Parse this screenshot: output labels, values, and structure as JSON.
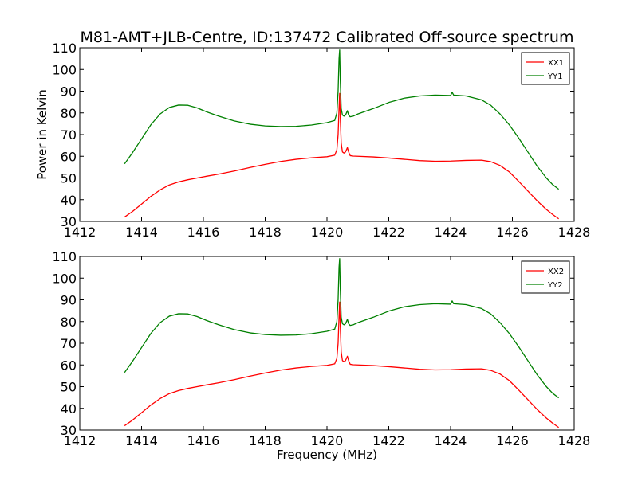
{
  "chart_data": {
    "title": "M81-AMT+JLB-Centre, ID:137472 Calibrated Off-source spectrum",
    "xlabel": "Frequency (MHz)",
    "ylabel": "Power in Kelvin",
    "colors": {
      "XX": "#ff0000",
      "YY": "#008000"
    },
    "panels": [
      {
        "type": "line",
        "xlim": [
          1412,
          1428
        ],
        "ylim": [
          30,
          110
        ],
        "xticks": [
          1412,
          1414,
          1416,
          1418,
          1420,
          1422,
          1424,
          1426,
          1428
        ],
        "yticks": [
          30,
          40,
          50,
          60,
          70,
          80,
          90,
          100,
          110
        ],
        "legend_position": "top-right",
        "series": [
          {
            "name": "XX1",
            "color": "#ff0000",
            "x": [
              1413.45,
              1413.7,
              1414.0,
              1414.3,
              1414.6,
              1414.9,
              1415.2,
              1415.5,
              1415.8,
              1416.1,
              1416.5,
              1417.0,
              1417.5,
              1418.0,
              1418.5,
              1419.0,
              1419.5,
              1420.0,
              1420.25,
              1420.32,
              1420.36,
              1420.39,
              1420.41,
              1420.43,
              1420.46,
              1420.5,
              1420.55,
              1420.6,
              1420.66,
              1420.7,
              1420.75,
              1420.85,
              1421.0,
              1421.5,
              1422.0,
              1422.5,
              1423.0,
              1423.5,
              1424.0,
              1424.5,
              1425.0,
              1425.3,
              1425.6,
              1425.9,
              1426.2,
              1426.5,
              1426.8,
              1427.1,
              1427.3,
              1427.5
            ],
            "y": [
              32,
              34.5,
              38,
              41.5,
              44.5,
              46.8,
              48.2,
              49.2,
              50.0,
              50.8,
              51.8,
              53.2,
              54.8,
              56.3,
              57.6,
              58.6,
              59.3,
              59.8,
              60.5,
              63,
              70,
              82,
              89,
              78,
              66,
              62,
              61.5,
              62,
              64,
              62,
              60.3,
              60.1,
              60.0,
              59.7,
              59.2,
              58.6,
              58.0,
              57.7,
              57.8,
              58.1,
              58.2,
              57.5,
              55.8,
              52.8,
              48.5,
              44.0,
              39.5,
              35.5,
              33.2,
              31.2
            ]
          },
          {
            "name": "YY1",
            "color": "#008000",
            "x": [
              1413.45,
              1413.7,
              1414.0,
              1414.3,
              1414.6,
              1414.9,
              1415.2,
              1415.5,
              1415.8,
              1416.1,
              1416.5,
              1417.0,
              1417.5,
              1418.0,
              1418.5,
              1419.0,
              1419.5,
              1420.0,
              1420.25,
              1420.32,
              1420.36,
              1420.39,
              1420.41,
              1420.43,
              1420.46,
              1420.5,
              1420.55,
              1420.6,
              1420.66,
              1420.7,
              1420.75,
              1420.85,
              1421.0,
              1421.5,
              1422.0,
              1422.5,
              1423.0,
              1423.5,
              1424.0,
              1424.05,
              1424.1,
              1424.5,
              1425.0,
              1425.3,
              1425.6,
              1425.9,
              1426.2,
              1426.5,
              1426.8,
              1427.1,
              1427.3,
              1427.5
            ],
            "y": [
              56.5,
              61.5,
              68,
              74.5,
              79.5,
              82.5,
              83.6,
              83.5,
              82.3,
              80.5,
              78.5,
              76.3,
              74.8,
              74.0,
              73.7,
              73.8,
              74.4,
              75.5,
              76.5,
              80,
              90,
              105,
              109,
              95,
              82,
              79,
              78.5,
              79,
              81,
              79,
              78.2,
              78.5,
              79.5,
              82,
              84.8,
              86.8,
              87.8,
              88.2,
              88.0,
              89.5,
              88.2,
              87.8,
              86.0,
              83.5,
              79.5,
              74.5,
              68.5,
              62.0,
              55.5,
              50.0,
              47.0,
              44.8
            ]
          }
        ]
      },
      {
        "type": "line",
        "xlim": [
          1412,
          1428
        ],
        "ylim": [
          30,
          110
        ],
        "xticks": [
          1412,
          1414,
          1416,
          1418,
          1420,
          1422,
          1424,
          1426,
          1428
        ],
        "yticks": [
          30,
          40,
          50,
          60,
          70,
          80,
          90,
          100,
          110
        ],
        "legend_position": "top-right",
        "series": [
          {
            "name": "XX2",
            "color": "#ff0000",
            "x": [
              1413.45,
              1413.7,
              1414.0,
              1414.3,
              1414.6,
              1414.9,
              1415.2,
              1415.5,
              1415.8,
              1416.1,
              1416.5,
              1417.0,
              1417.5,
              1418.0,
              1418.5,
              1419.0,
              1419.5,
              1420.0,
              1420.25,
              1420.32,
              1420.36,
              1420.39,
              1420.41,
              1420.43,
              1420.46,
              1420.5,
              1420.55,
              1420.6,
              1420.66,
              1420.7,
              1420.75,
              1420.85,
              1421.0,
              1421.5,
              1422.0,
              1422.5,
              1423.0,
              1423.5,
              1424.0,
              1424.5,
              1425.0,
              1425.3,
              1425.6,
              1425.9,
              1426.2,
              1426.5,
              1426.8,
              1427.1,
              1427.3,
              1427.5
            ],
            "y": [
              32,
              34.5,
              38,
              41.5,
              44.5,
              46.8,
              48.2,
              49.2,
              50.0,
              50.8,
              51.8,
              53.2,
              54.8,
              56.3,
              57.6,
              58.6,
              59.3,
              59.8,
              60.5,
              63,
              70,
              82,
              89,
              78,
              66,
              62,
              61.5,
              62,
              64,
              62,
              60.3,
              60.1,
              60.0,
              59.7,
              59.2,
              58.6,
              58.0,
              57.7,
              57.8,
              58.1,
              58.2,
              57.5,
              55.8,
              52.8,
              48.5,
              44.0,
              39.5,
              35.5,
              33.2,
              31.2
            ]
          },
          {
            "name": "YY2",
            "color": "#008000",
            "x": [
              1413.45,
              1413.7,
              1414.0,
              1414.3,
              1414.6,
              1414.9,
              1415.2,
              1415.5,
              1415.8,
              1416.1,
              1416.5,
              1417.0,
              1417.5,
              1418.0,
              1418.5,
              1419.0,
              1419.5,
              1420.0,
              1420.25,
              1420.32,
              1420.36,
              1420.39,
              1420.41,
              1420.43,
              1420.46,
              1420.5,
              1420.55,
              1420.6,
              1420.66,
              1420.7,
              1420.75,
              1420.85,
              1421.0,
              1421.5,
              1422.0,
              1422.5,
              1423.0,
              1423.5,
              1424.0,
              1424.05,
              1424.1,
              1424.5,
              1425.0,
              1425.3,
              1425.6,
              1425.9,
              1426.2,
              1426.5,
              1426.8,
              1427.1,
              1427.3,
              1427.5
            ],
            "y": [
              56.5,
              61.5,
              68,
              74.5,
              79.5,
              82.5,
              83.6,
              83.5,
              82.3,
              80.5,
              78.5,
              76.3,
              74.8,
              74.0,
              73.7,
              73.8,
              74.4,
              75.5,
              76.5,
              80,
              90,
              105,
              109,
              95,
              82,
              79,
              78.5,
              79,
              81,
              79,
              78.2,
              78.5,
              79.5,
              82,
              84.8,
              86.8,
              87.8,
              88.2,
              88.0,
              89.5,
              88.2,
              87.8,
              86.0,
              83.5,
              79.5,
              74.5,
              68.5,
              62.0,
              55.5,
              50.0,
              47.0,
              44.8
            ]
          }
        ]
      }
    ]
  }
}
